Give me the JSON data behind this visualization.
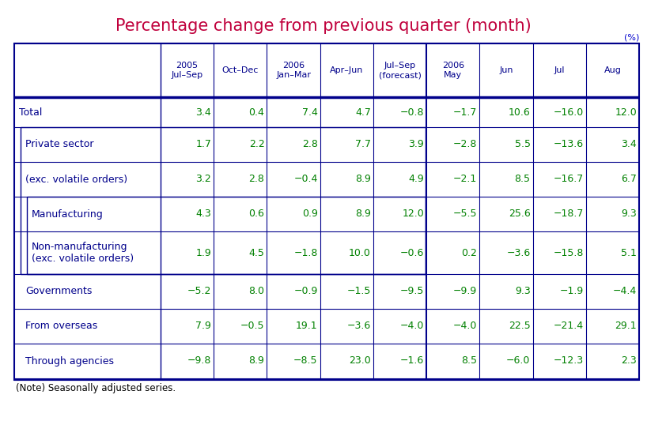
{
  "title": "Percentage change from previous quarter (month)",
  "title_color": "#C0003C",
  "percent_label": "(%)",
  "percent_color": "#0000CD",
  "note": "(Note) Seasonally adjusted series.",
  "header_color": "#00008B",
  "data_color": "#008000",
  "border_color": "#00008B",
  "col_headers": [
    "2005\nJul–Sep",
    "Oct–Dec",
    "2006\nJan–Mar",
    "Apr–Jun",
    "Jul–Sep\n(forecast)",
    "2006\nMay",
    "Jun",
    "Jul",
    "Aug"
  ],
  "row_labels": [
    "Total",
    "Private sector",
    "(exc. volatile orders)",
    "Manufacturing",
    "Non-manufacturing\n(exc. volatile orders)",
    "Governments",
    "From overseas",
    "Through agencies"
  ],
  "row_indent": [
    0,
    1,
    1,
    2,
    2,
    1,
    1,
    1
  ],
  "values": [
    [
      "3.4",
      "0.4",
      "7.4",
      "4.7",
      "−0.8",
      "−1.7",
      "10.6",
      "−16.0",
      "12.0"
    ],
    [
      "1.7",
      "2.2",
      "2.8",
      "7.7",
      "3.9",
      "−2.8",
      "5.5",
      "−13.6",
      "3.4"
    ],
    [
      "3.2",
      "2.8",
      "−0.4",
      "8.9",
      "4.9",
      "−2.1",
      "8.5",
      "−16.7",
      "6.7"
    ],
    [
      "4.3",
      "0.6",
      "0.9",
      "8.9",
      "12.0",
      "−5.5",
      "25.6",
      "−18.7",
      "9.3"
    ],
    [
      "1.9",
      "4.5",
      "−1.8",
      "10.0",
      "−0.6",
      "0.2",
      "−3.6",
      "−15.8",
      "5.1"
    ],
    [
      "−5.2",
      "8.0",
      "−0.9",
      "−1.5",
      "−9.5",
      "−9.9",
      "9.3",
      "−1.9",
      "−4.4"
    ],
    [
      "7.9",
      "−0.5",
      "19.1",
      "−3.6",
      "−4.0",
      "−4.0",
      "22.5",
      "−21.4",
      "29.1"
    ],
    [
      "−9.8",
      "8.9",
      "−8.5",
      "23.0",
      "−1.6",
      "8.5",
      "−6.0",
      "−12.3",
      "2.3"
    ]
  ],
  "background_color": "#FFFFFF"
}
